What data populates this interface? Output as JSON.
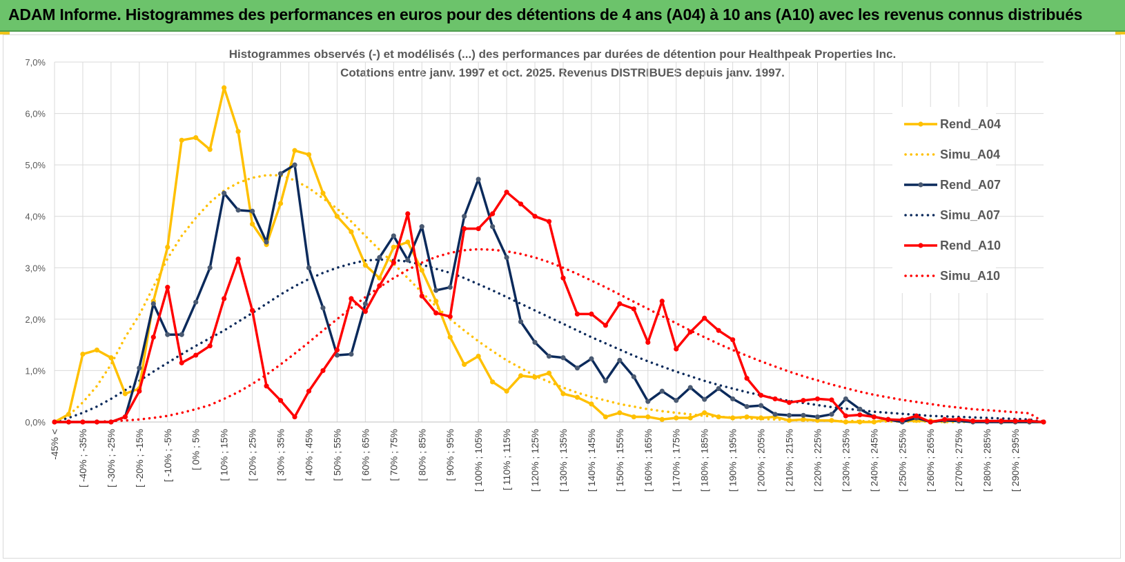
{
  "banner": {
    "title": "ADAM Informe. Histogrammes des performances en euros pour des détentions de 4 ans (A04) à 10 ans (A10) avec les revenus connus distribués"
  },
  "colors": {
    "banner_bg": "#6cc36b",
    "a04": "#ffc000",
    "a07": "#0b2a5b",
    "a10": "#ff0000",
    "grid": "#d9d9d9",
    "text": "#595959"
  },
  "chart_data": {
    "type": "line",
    "title": "Histogrammes observés (-) et modélisés (...) des performances par durées de détention pour Healthpeak Properties Inc.",
    "subtitle": "Cotations entre janv. 1997 et oct. 2025.  Revenus DISTRIBUES depuis janv. 1997.",
    "xlabel": "",
    "ylabel": "",
    "ylim": [
      0,
      7
    ],
    "y_ticks": [
      "0,0%",
      "1,0%",
      "2,0%",
      "3,0%",
      "4,0%",
      "5,0%",
      "6,0%",
      "7,0%"
    ],
    "x_tick_labels": [
      "-45% <",
      "[ -40% ; -35%",
      "[ -30% ; -25%",
      "[ -20% ; -15%",
      "[ -10% ; -5%",
      "[ 0% ; 5%",
      "[ 10% ; 15%",
      "[ 20% ; 25%",
      "[ 30% ; 35%",
      "[ 40% ; 45%",
      "[ 50% ; 55%",
      "[ 60% ; 65%",
      "[ 70% ; 75%",
      "[ 80% ; 85%",
      "[ 90% ; 95%",
      "[ 100% ; 105%",
      "[ 110% ; 115%",
      "[ 120% ; 125%",
      "[ 130% ; 135%",
      "[ 140% ; 145%",
      "[ 150% ; 155%",
      "[ 160% ; 165%",
      "[ 170% ; 175%",
      "[ 180% ; 185%",
      "[ 190% ; 195%",
      "[ 200% ; 205%",
      "[ 210% ; 215%",
      "[ 220% ; 225%",
      "[ 230% ; 235%",
      "[ 240% ; 245%",
      "[ 250% ; 255%",
      "[ 260% ; 265%",
      "[ 270% ; 275%",
      "[ 280% ; 285%",
      "[ 290% ; 295%"
    ],
    "legend_position": "right",
    "series": [
      {
        "name": "Rend_A04",
        "style": "solid",
        "color": "#ffc000",
        "values": [
          0,
          0.15,
          1.32,
          1.4,
          1.25,
          0.55,
          0.65,
          2.35,
          3.4,
          5.48,
          5.53,
          5.3,
          6.5,
          5.65,
          3.85,
          3.45,
          4.25,
          5.28,
          5.2,
          4.45,
          4.0,
          3.7,
          3.05,
          2.8,
          3.4,
          3.5,
          2.95,
          2.35,
          1.65,
          1.12,
          1.28,
          0.78,
          0.6,
          0.9,
          0.87,
          0.95,
          0.55,
          0.48,
          0.35,
          0.1,
          0.18,
          0.1,
          0.1,
          0.05,
          0.08,
          0.08,
          0.18,
          0.1,
          0.08,
          0.1,
          0.08,
          0.1,
          0.03,
          0.05,
          0.03,
          0.03,
          0.0,
          0.0,
          0.0,
          0.05,
          0.02,
          0.03,
          0.02,
          0.02,
          0.02,
          0.02,
          0.02,
          0.0,
          0.0,
          0.0,
          0.0
        ]
      },
      {
        "name": "Simu_A04",
        "style": "dotted",
        "color": "#ffc000",
        "values": [
          0.0,
          0.13,
          0.38,
          0.7,
          1.12,
          1.65,
          2.08,
          2.63,
          3.18,
          3.62,
          3.97,
          4.27,
          4.5,
          4.65,
          4.75,
          4.8,
          4.8,
          4.7,
          4.55,
          4.35,
          4.15,
          3.9,
          3.62,
          3.35,
          3.08,
          2.8,
          2.52,
          2.25,
          2.0,
          1.78,
          1.57,
          1.38,
          1.2,
          1.05,
          0.9,
          0.78,
          0.67,
          0.57,
          0.49,
          0.42,
          0.35,
          0.3,
          0.25,
          0.21,
          0.18,
          0.15,
          0.12,
          0.1,
          0.09,
          0.07,
          0.06,
          0.05,
          0.04,
          0.03,
          0.03,
          0.02,
          0.02,
          0.02,
          0.01,
          0.01,
          0.01,
          0.01,
          0.01,
          0.0,
          0.0,
          0.0,
          0.0,
          0.0,
          0.0,
          0.0,
          0.0
        ]
      },
      {
        "name": "Rend_A07",
        "style": "solid",
        "color": "#0b2a5b",
        "values": [
          0,
          0,
          0,
          0,
          0,
          0.1,
          1.05,
          2.3,
          1.7,
          1.7,
          2.33,
          3.0,
          4.45,
          4.12,
          4.1,
          3.5,
          4.83,
          5.0,
          3.0,
          2.22,
          1.3,
          1.32,
          2.3,
          3.2,
          3.62,
          3.15,
          3.8,
          2.56,
          2.62,
          4.0,
          4.72,
          3.8,
          3.2,
          1.95,
          1.55,
          1.28,
          1.25,
          1.05,
          1.23,
          0.8,
          1.2,
          0.88,
          0.4,
          0.6,
          0.42,
          0.67,
          0.44,
          0.65,
          0.45,
          0.3,
          0.32,
          0.15,
          0.13,
          0.13,
          0.1,
          0.15,
          0.45,
          0.25,
          0.1,
          0.05,
          0.0,
          0.08,
          0.0,
          0.03,
          0.02,
          0.0,
          0.0,
          0.0,
          0.0,
          0.0,
          0.0
        ]
      },
      {
        "name": "Simu_A07",
        "style": "dotted",
        "color": "#0b2a5b",
        "values": [
          0.0,
          0.08,
          0.18,
          0.3,
          0.45,
          0.62,
          0.8,
          0.98,
          1.15,
          1.32,
          1.48,
          1.63,
          1.78,
          1.95,
          2.12,
          2.3,
          2.48,
          2.64,
          2.78,
          2.9,
          3.0,
          3.08,
          3.14,
          3.16,
          3.15,
          3.12,
          3.06,
          2.98,
          2.9,
          2.8,
          2.68,
          2.56,
          2.43,
          2.3,
          2.17,
          2.04,
          1.91,
          1.78,
          1.65,
          1.53,
          1.41,
          1.29,
          1.18,
          1.08,
          0.98,
          0.89,
          0.8,
          0.72,
          0.65,
          0.58,
          0.52,
          0.46,
          0.41,
          0.37,
          0.33,
          0.29,
          0.26,
          0.23,
          0.2,
          0.18,
          0.16,
          0.14,
          0.12,
          0.11,
          0.1,
          0.09,
          0.08,
          0.07,
          0.06,
          0.05,
          0.0
        ]
      },
      {
        "name": "Rend_A10",
        "style": "solid",
        "color": "#ff0000",
        "values": [
          0,
          0,
          0,
          0,
          0,
          0.1,
          0.6,
          1.65,
          2.62,
          1.15,
          1.3,
          1.48,
          2.4,
          3.17,
          2.17,
          0.7,
          0.42,
          0.1,
          0.6,
          1.0,
          1.4,
          2.4,
          2.15,
          2.65,
          3.1,
          4.05,
          2.45,
          2.12,
          2.05,
          3.76,
          3.76,
          4.05,
          4.47,
          4.24,
          4.0,
          3.9,
          2.8,
          2.1,
          2.1,
          1.88,
          2.3,
          2.2,
          1.55,
          2.35,
          1.42,
          1.75,
          2.02,
          1.78,
          1.6,
          0.85,
          0.52,
          0.45,
          0.38,
          0.42,
          0.45,
          0.43,
          0.12,
          0.14,
          0.1,
          0.05,
          0.04,
          0.12,
          0.0,
          0.05,
          0.05,
          0.02,
          0.02,
          0.02,
          0.02,
          0.02,
          0.0
        ]
      },
      {
        "name": "Simu_A10",
        "style": "dotted",
        "color": "#ff0000",
        "values": [
          0.0,
          0.0,
          0.0,
          0.0,
          0.02,
          0.03,
          0.05,
          0.08,
          0.12,
          0.18,
          0.25,
          0.33,
          0.45,
          0.58,
          0.74,
          0.92,
          1.12,
          1.33,
          1.55,
          1.78,
          2.0,
          2.22,
          2.43,
          2.62,
          2.8,
          2.96,
          3.1,
          3.21,
          3.29,
          3.34,
          3.36,
          3.35,
          3.32,
          3.27,
          3.2,
          3.11,
          3.0,
          2.88,
          2.75,
          2.62,
          2.48,
          2.34,
          2.2,
          2.06,
          1.92,
          1.78,
          1.65,
          1.52,
          1.4,
          1.29,
          1.18,
          1.08,
          0.98,
          0.89,
          0.81,
          0.73,
          0.66,
          0.59,
          0.53,
          0.48,
          0.43,
          0.39,
          0.35,
          0.31,
          0.28,
          0.25,
          0.23,
          0.21,
          0.19,
          0.17,
          0.0
        ]
      }
    ]
  }
}
